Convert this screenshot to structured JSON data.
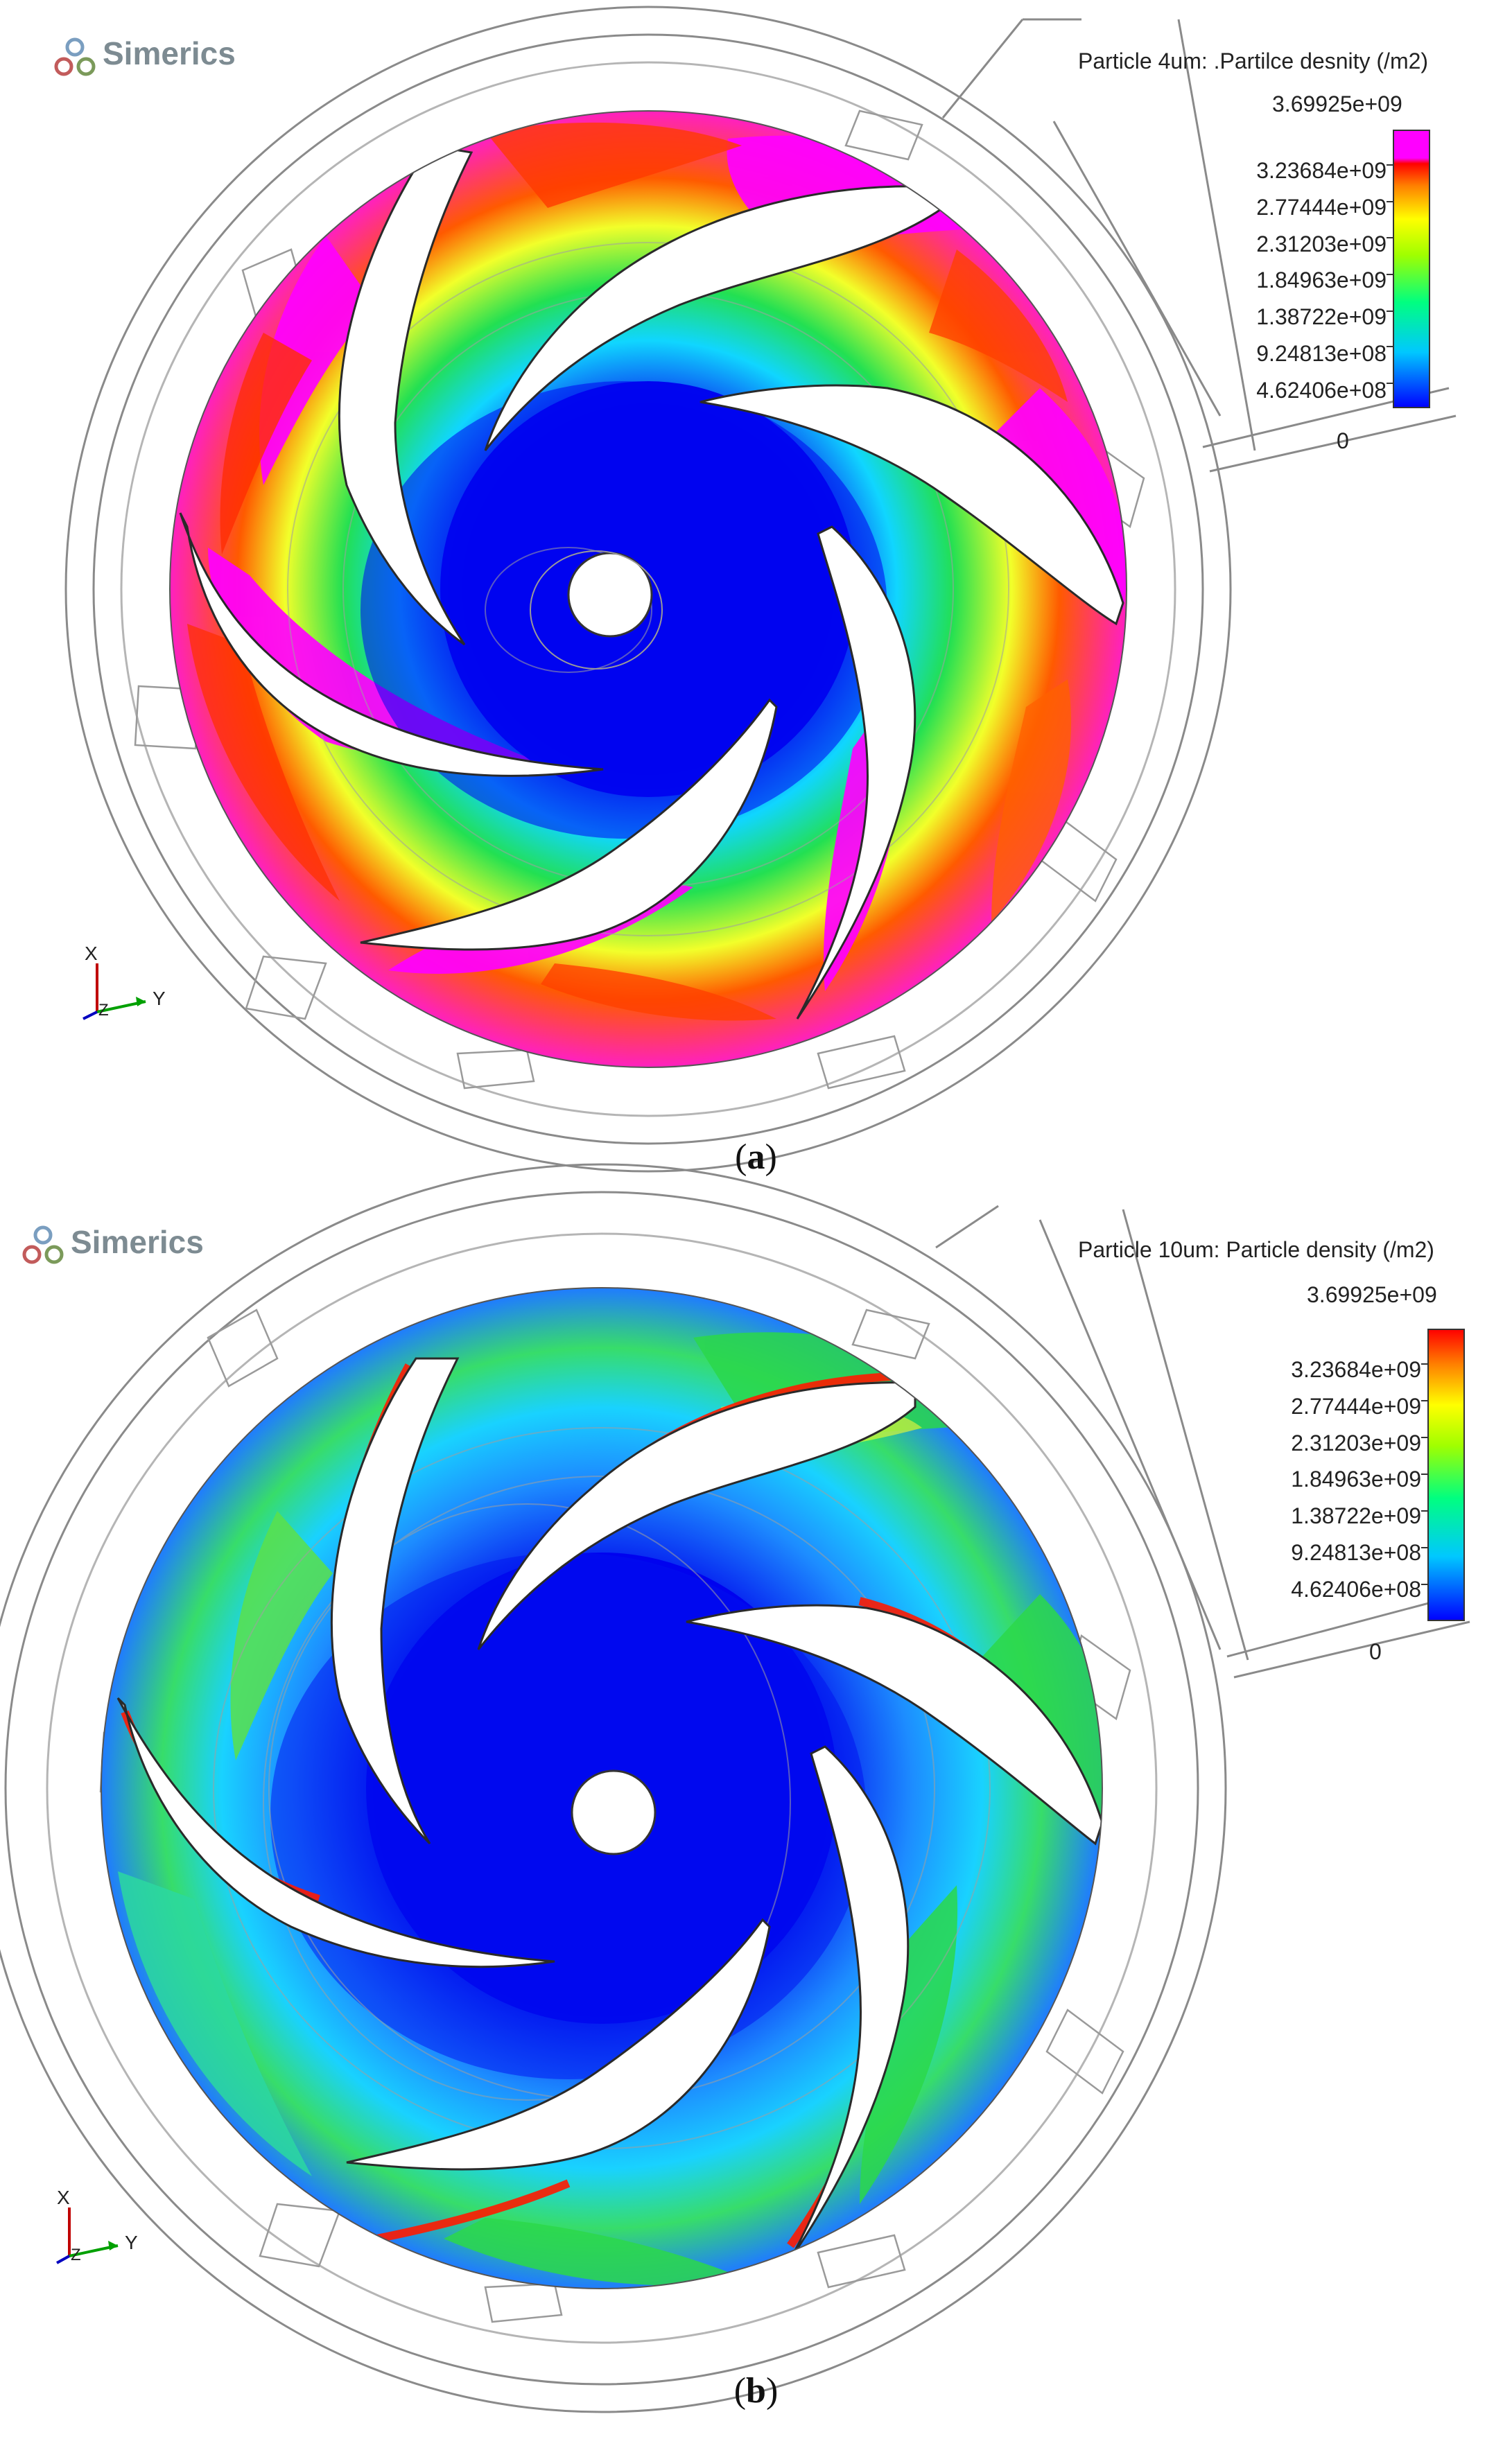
{
  "panels": [
    {
      "id": "a",
      "logo_text": "Simerics",
      "legend_title": "Particle 4um: .Partilce desnity (/m2)",
      "legend_max": "3.69925e+09",
      "legend_ticks": [
        "3.23684e+09",
        "2.77444e+09",
        "2.31203e+09",
        "1.84963e+09",
        "1.38722e+09",
        "9.24813e+08",
        "4.62406e+08"
      ],
      "legend_zero": "0",
      "legend_colors": [
        "#0000ff",
        "#00c8ff",
        "#00ff80",
        "#80ff00",
        "#ffff00",
        "#ff8000",
        "#ff0000",
        "#ff00ff"
      ],
      "axis_x": "X",
      "axis_y": "Y",
      "axis_z": "Z",
      "caption_letter": "a"
    },
    {
      "id": "b",
      "logo_text": "Simerics",
      "legend_title": "Particle 10um: Particle density (/m2)",
      "legend_max": "3.69925e+09",
      "legend_ticks": [
        "3.23684e+09",
        "2.77444e+09",
        "2.31203e+09",
        "1.84963e+09",
        "1.38722e+09",
        "9.24813e+08",
        "4.62406e+08"
      ],
      "legend_zero": "0",
      "legend_colors": [
        "#0000ff",
        "#00c8ff",
        "#00ff80",
        "#80ff00",
        "#ffff00",
        "#ff8000",
        "#ff0000"
      ],
      "axis_x": "X",
      "axis_y": "Y",
      "axis_z": "Z",
      "caption_letter": "b"
    }
  ],
  "colors": {
    "hub_blue": "#0a18c8",
    "deep_blue": "#0000e6",
    "mid_blue": "#1e6bff",
    "cyan": "#19d6ff",
    "green": "#2bd84a",
    "yellow": "#f0ff1e",
    "orange": "#ff8a00",
    "red": "#ff1a00",
    "magenta": "#ff00ff",
    "casing_line": "#7f7f7f"
  }
}
